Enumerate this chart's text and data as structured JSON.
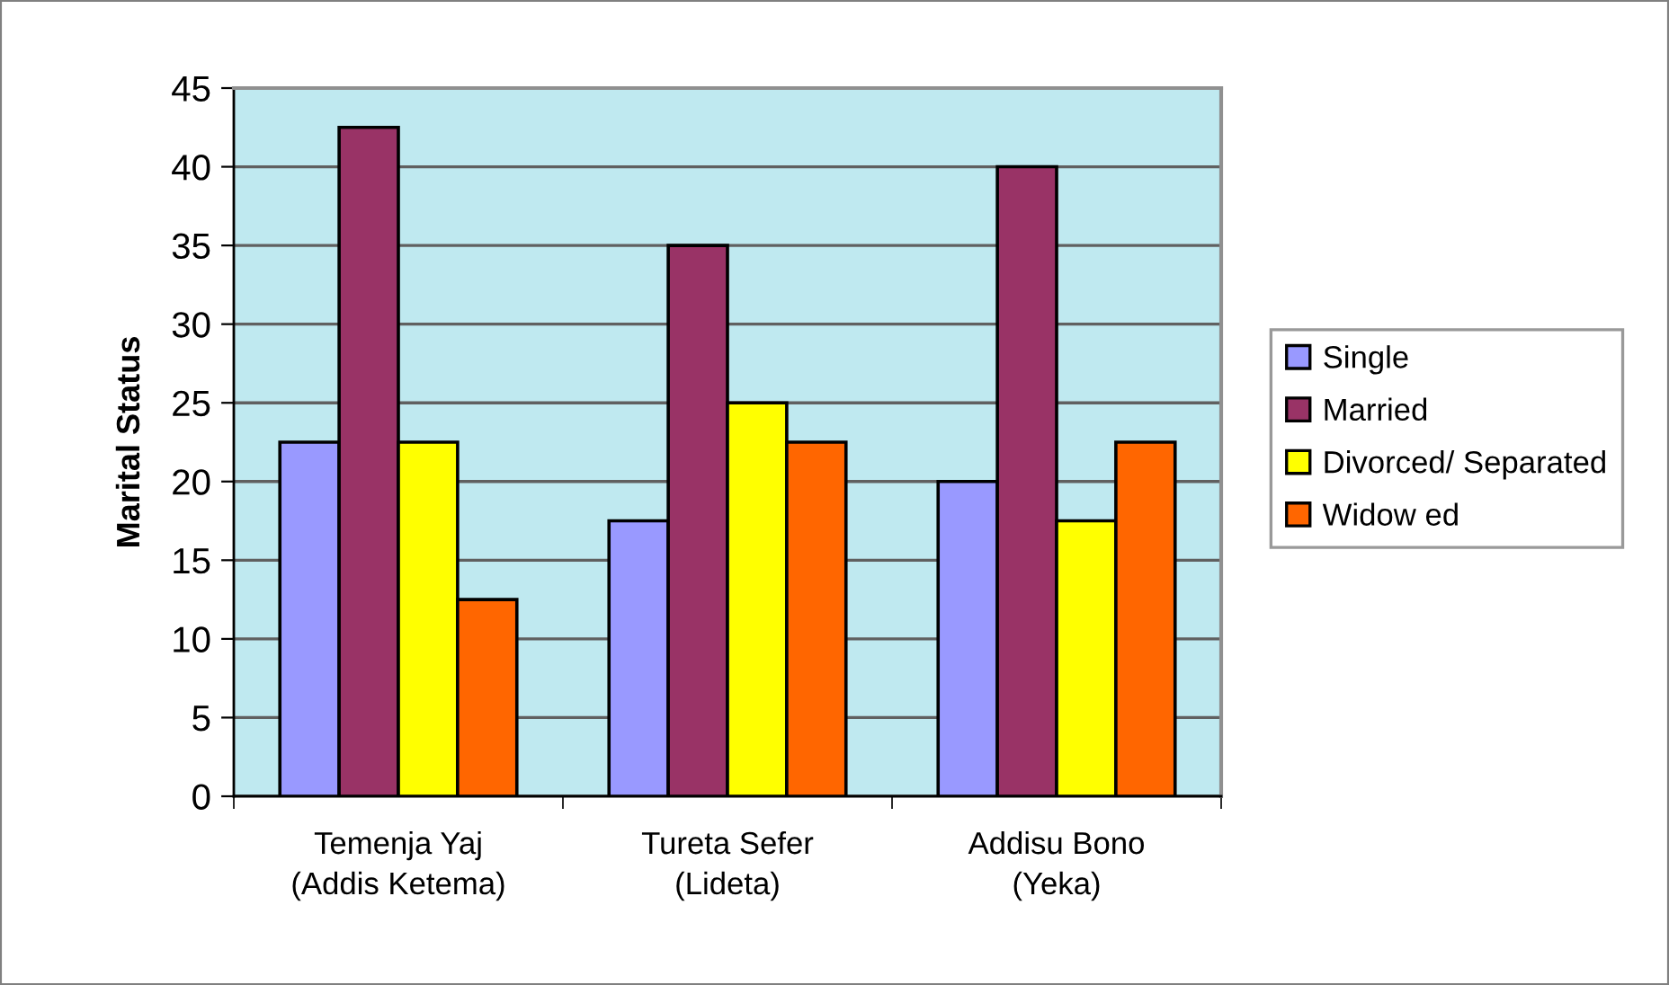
{
  "chart_data": {
    "type": "bar",
    "ylabel": "Marital Status",
    "categories": [
      "Temenja Yaj\n(Addis Ketema)",
      "Tureta Sefer\n(Lideta)",
      "Addisu Bono\n(Yeka)"
    ],
    "series": [
      {
        "name": "Single",
        "color": "#9999ff",
        "values": [
          22.5,
          17.5,
          20
        ]
      },
      {
        "name": "Married",
        "color": "#993366",
        "values": [
          42.5,
          35,
          40
        ]
      },
      {
        "name": "Divorced/ Separated",
        "color": "#ffff00",
        "values": [
          22.5,
          25,
          17.5
        ]
      },
      {
        "name": "Widow ed",
        "color": "#ff6600",
        "values": [
          12.5,
          22.5,
          22.5
        ]
      }
    ],
    "ylim": [
      0,
      45
    ],
    "yticks": [
      0,
      5,
      10,
      15,
      20,
      25,
      30,
      35,
      40,
      45
    ],
    "grid": "y",
    "legend": "right"
  }
}
